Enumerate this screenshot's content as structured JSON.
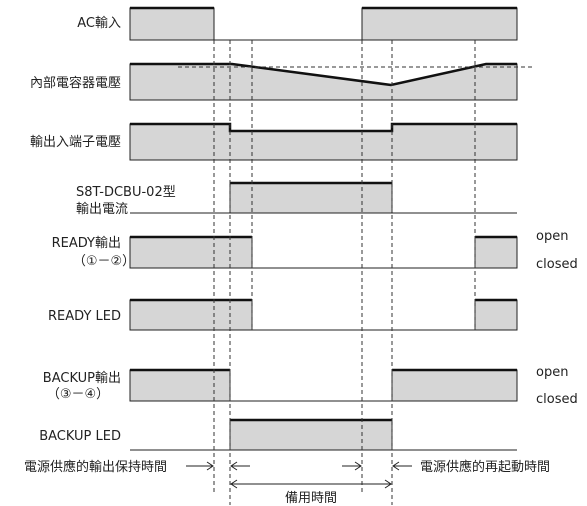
{
  "signals": {
    "ac_input": "AC輸入",
    "capacitor_voltage": "內部電容器電壓",
    "terminal_voltage": "輸出入端子電壓",
    "output_current_line1": "S8T-DCBU-02型",
    "output_current_line2": "輸出電流",
    "ready_output_line1": "READY輸出",
    "ready_output_line2": "（①－②）",
    "ready_led": "READY LED",
    "backup_output_line1": "BACKUP輸出",
    "backup_output_line2": "（③－④）",
    "backup_led": "BACKUP LED"
  },
  "states": {
    "ready_open": "open",
    "ready_closed": "closed",
    "backup_open": "open",
    "backup_closed": "closed"
  },
  "annotations": {
    "hold_time": "電源供應的輸出保持時間",
    "restart_time": "電源供應的再起動時間",
    "backup_time": "備用時間"
  },
  "colors": {
    "fill": "#d6d6d6",
    "line": "#222222"
  }
}
